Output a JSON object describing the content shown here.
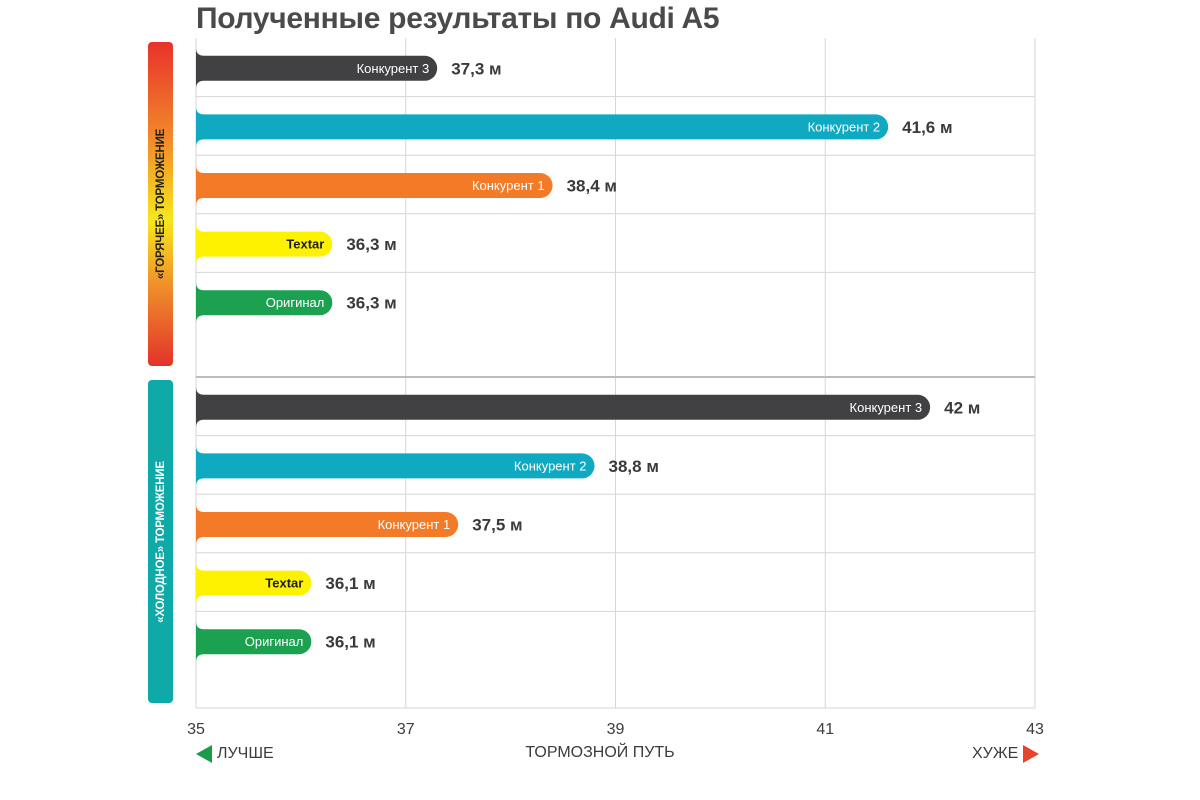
{
  "chart_data": {
    "type": "bar",
    "orientation": "horizontal",
    "title": "Полученные результаты по Audi A5",
    "xlabel": "ТОРМОЗНОЙ ПУТЬ",
    "xlim": [
      35,
      43
    ],
    "xticks": [
      "35",
      "37",
      "39",
      "41",
      "43"
    ],
    "grid": true,
    "direction_labels": {
      "better": "ЛУЧШЕ",
      "worse": "ХУЖЕ"
    },
    "colors": {
      "Конкурент 3": "#414143",
      "Конкурент 2": "#10a9c2",
      "Конкурент 1": "#f37a26",
      "Textar": "#fff200",
      "Оригинал": "#1ca151",
      "arrow_better": "#1a9b4a",
      "arrow_worse": "#e8432d",
      "group_hot": "#f28a2a",
      "group_cold": "#0fa9a8"
    },
    "groups": [
      {
        "name": "«ГОРЯЧЕЕ» ТОРМОЖЕНИЕ",
        "bars": [
          {
            "label": "Конкурент 3",
            "value": 37.3,
            "value_label": "37,3 м"
          },
          {
            "label": "Конкурент 2",
            "value": 41.6,
            "value_label": "41,6 м"
          },
          {
            "label": "Конкурент 1",
            "value": 38.4,
            "value_label": "38,4 м"
          },
          {
            "label": "Textar",
            "value": 36.3,
            "value_label": "36,3 м"
          },
          {
            "label": "Оригинал",
            "value": 36.3,
            "value_label": "36,3 м"
          }
        ]
      },
      {
        "name": "«ХОЛОДНОЕ» ТОРМОЖЕНИЕ",
        "bars": [
          {
            "label": "Конкурент 3",
            "value": 42,
            "value_label": "42 м"
          },
          {
            "label": "Конкурент 2",
            "value": 38.8,
            "value_label": "38,8 м"
          },
          {
            "label": "Конкурент 1",
            "value": 37.5,
            "value_label": "37,5 м"
          },
          {
            "label": "Textar",
            "value": 36.1,
            "value_label": "36,1 м"
          },
          {
            "label": "Оригинал",
            "value": 36.1,
            "value_label": "36,1 м"
          }
        ]
      }
    ]
  }
}
